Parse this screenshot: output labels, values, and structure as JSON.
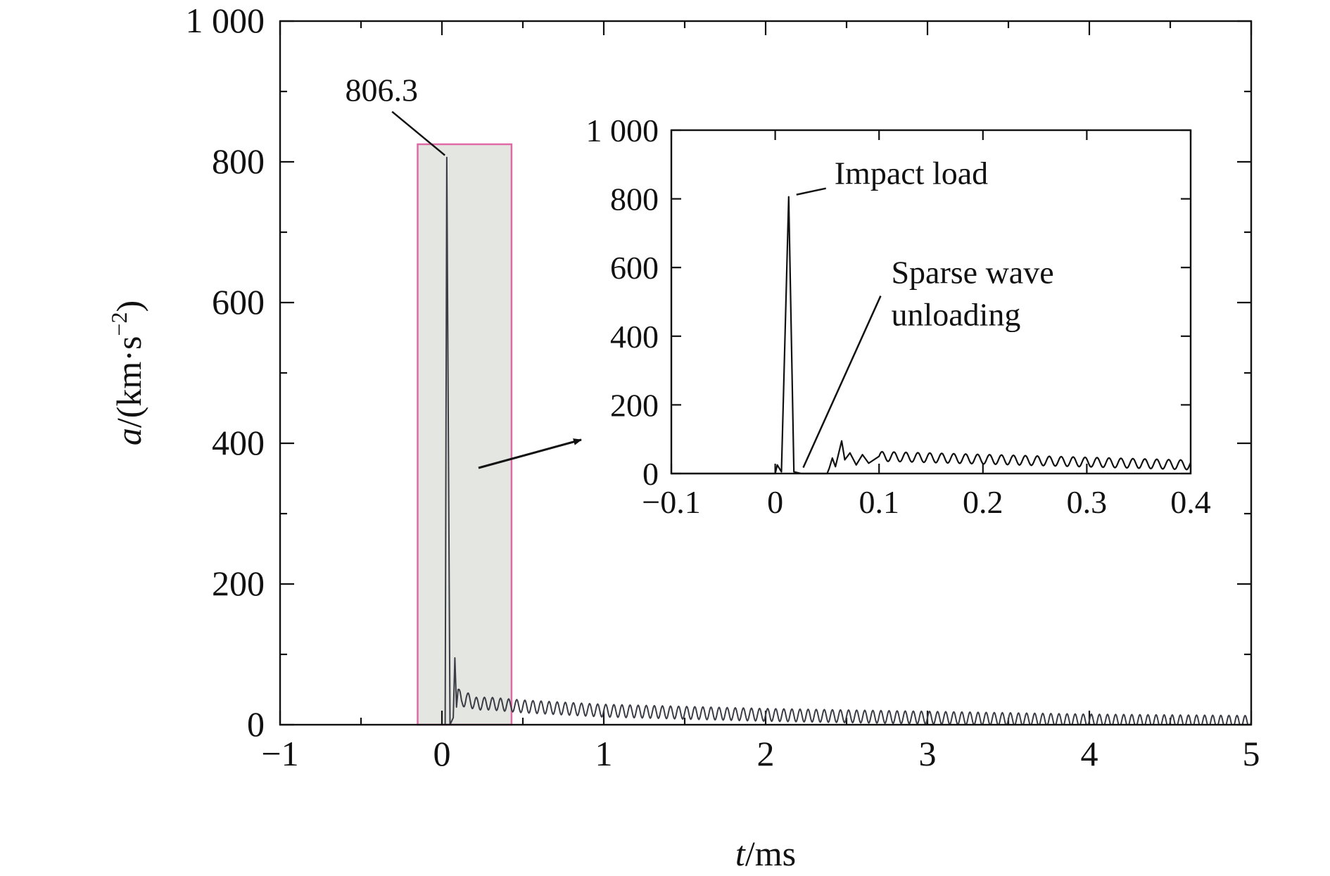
{
  "chart_data": [
    {
      "id": "main",
      "type": "line",
      "xlabel": {
        "var": "t",
        "unit": "/ms"
      },
      "ylabel": {
        "var": "a",
        "unit_pre": "/(km·s",
        "unit_exp": "−2",
        "unit_post": ")"
      },
      "xlim": [
        -1,
        5
      ],
      "ylim": [
        0,
        1000
      ],
      "xticks": [
        -1,
        0,
        1,
        2,
        3,
        4,
        5
      ],
      "xtick_labels": [
        "−1",
        "0",
        "1",
        "2",
        "3",
        "4",
        "5"
      ],
      "yticks": [
        0,
        200,
        400,
        600,
        800,
        1000
      ],
      "ytick_labels": [
        "0",
        "200",
        "400",
        "600",
        "800",
        "1 000"
      ],
      "grid": false,
      "highlight_region": {
        "x": [
          -0.15,
          0.43
        ],
        "y": [
          0,
          825
        ],
        "fill": "#e3e6e1",
        "stroke": "#e06aa6"
      },
      "peak_annotation": {
        "text": "806.3",
        "x": 0.04,
        "y": 806.3
      },
      "series": [
        {
          "color": "#3a3d45",
          "points": [
            [
              -1,
              0
            ],
            [
              0,
              0
            ],
            [
              0.02,
              0
            ],
            [
              0.03,
              806.3
            ],
            [
              0.05,
              0
            ],
            [
              0.07,
              10
            ],
            [
              0.08,
              95
            ],
            [
              0.09,
              25
            ],
            [
              0.1,
              50
            ],
            [
              0.12,
              30
            ],
            [
              0.15,
              38
            ],
            [
              0.2,
              30
            ],
            [
              0.3,
              30
            ],
            [
              0.5,
              26
            ],
            [
              1,
              20
            ],
            [
              2,
              14
            ],
            [
              3,
              10
            ],
            [
              4,
              6
            ],
            [
              5,
              4
            ]
          ],
          "oscillation": {
            "amplitude": 9,
            "period": 0.05,
            "x_start": 0.1,
            "x_end": 5
          }
        }
      ]
    },
    {
      "id": "inset",
      "type": "line",
      "xlim": [
        -0.1,
        0.4
      ],
      "ylim": [
        0,
        1000
      ],
      "xticks": [
        -0.1,
        0,
        0.1,
        0.2,
        0.3,
        0.4
      ],
      "xtick_labels": [
        "−0.1",
        "0",
        "0.1",
        "0.2",
        "0.3",
        "0.4"
      ],
      "yticks": [
        0,
        200,
        400,
        600,
        800,
        1000
      ],
      "ytick_labels": [
        "0",
        "200",
        "400",
        "600",
        "800",
        "1 000"
      ],
      "grid": false,
      "annotations": [
        {
          "lines": [
            "Impact load"
          ],
          "x": 0.015,
          "y": 806
        },
        {
          "lines": [
            "Sparse wave",
            "unloading"
          ],
          "x": 0.027,
          "y": 5
        }
      ],
      "series": [
        {
          "color": "#111111",
          "points": [
            [
              -0.1,
              0
            ],
            [
              0,
              0
            ],
            [
              0.002,
              25
            ],
            [
              0.006,
              5
            ],
            [
              0.013,
              806
            ],
            [
              0.018,
              5
            ],
            [
              0.025,
              0
            ],
            [
              0.05,
              0
            ],
            [
              0.052,
              15
            ],
            [
              0.055,
              45
            ],
            [
              0.058,
              20
            ],
            [
              0.062,
              70
            ],
            [
              0.064,
              95
            ],
            [
              0.067,
              40
            ],
            [
              0.072,
              60
            ],
            [
              0.078,
              25
            ],
            [
              0.084,
              55
            ],
            [
              0.09,
              30
            ],
            [
              0.1,
              50
            ],
            [
              0.4,
              25
            ]
          ],
          "oscillation": {
            "amplitude": 14,
            "period": 0.0115,
            "x_start": 0.1,
            "x_end": 0.4
          }
        }
      ]
    }
  ]
}
